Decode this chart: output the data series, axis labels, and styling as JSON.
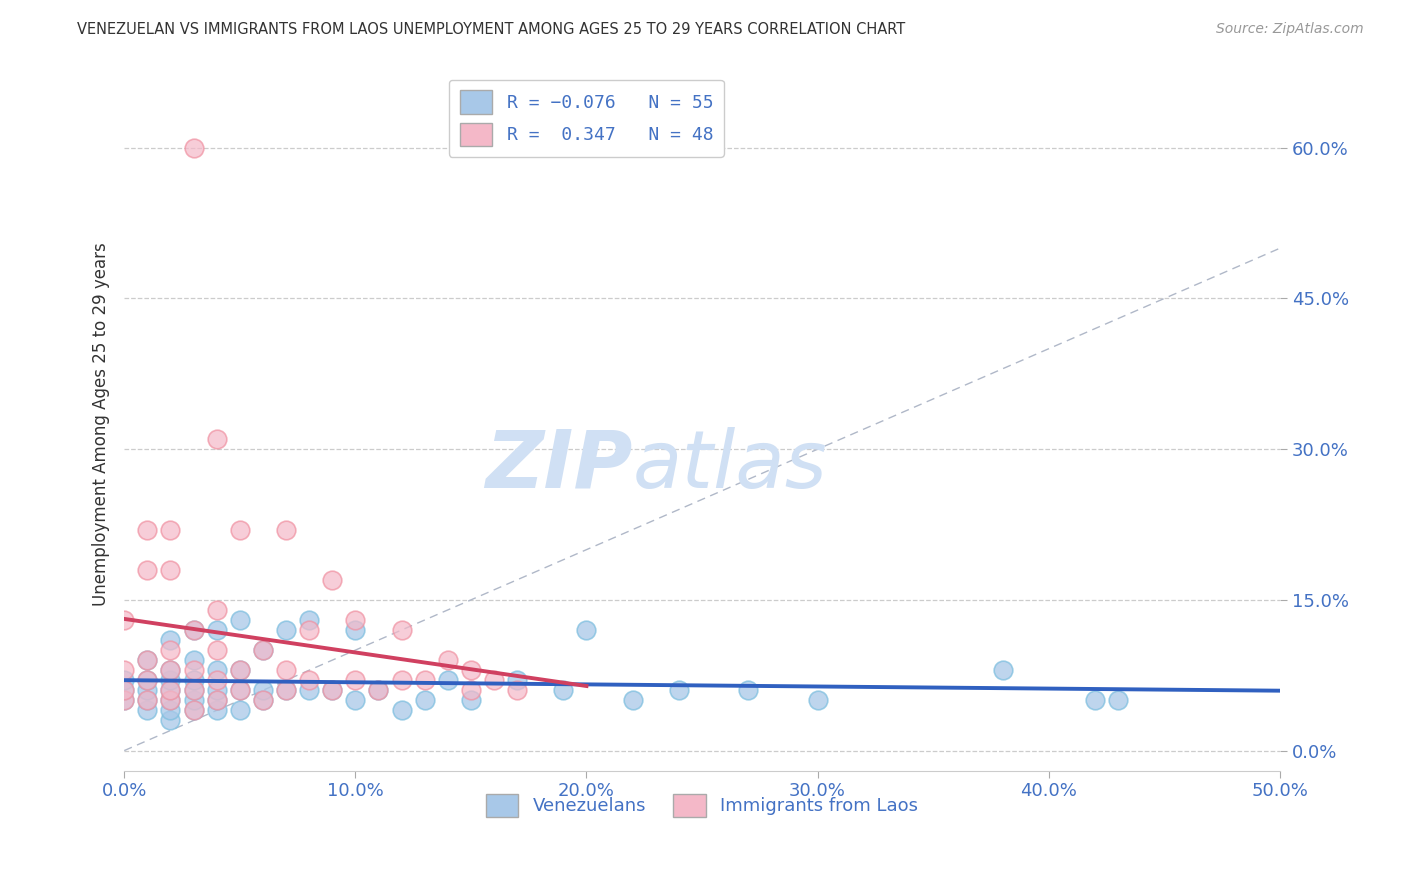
{
  "title": "VENEZUELAN VS IMMIGRANTS FROM LAOS UNEMPLOYMENT AMONG AGES 25 TO 29 YEARS CORRELATION CHART",
  "source": "Source: ZipAtlas.com",
  "ylabel": "Unemployment Among Ages 25 to 29 years",
  "xlim": [
    0.0,
    0.5
  ],
  "ylim": [
    -0.02,
    0.67
  ],
  "xticks": [
    0.0,
    0.1,
    0.2,
    0.3,
    0.4,
    0.5
  ],
  "xticklabels": [
    "0.0%",
    "10.0%",
    "20.0%",
    "30.0%",
    "40.0%",
    "50.0%"
  ],
  "yticks": [
    0.0,
    0.15,
    0.3,
    0.45,
    0.6
  ],
  "yticklabels": [
    "0.0%",
    "15.0%",
    "30.0%",
    "45.0%",
    "60.0%"
  ],
  "blue_color": "#7fbfdf",
  "pink_color": "#f090a0",
  "blue_line_color": "#3060c0",
  "pink_line_color": "#d04060",
  "blue_fill_color": "#a8c8e8",
  "pink_fill_color": "#f4b8c8",
  "watermark_zip": "ZIP",
  "watermark_atlas": "atlas",
  "watermark_color": "#d0e0f4",
  "tick_color": "#4472c4",
  "blue_scatter_x": [
    0.0,
    0.0,
    0.0,
    0.01,
    0.01,
    0.01,
    0.01,
    0.01,
    0.02,
    0.02,
    0.02,
    0.02,
    0.02,
    0.02,
    0.02,
    0.03,
    0.03,
    0.03,
    0.03,
    0.03,
    0.03,
    0.04,
    0.04,
    0.04,
    0.04,
    0.04,
    0.05,
    0.05,
    0.05,
    0.05,
    0.06,
    0.06,
    0.06,
    0.07,
    0.07,
    0.08,
    0.08,
    0.09,
    0.1,
    0.1,
    0.11,
    0.12,
    0.13,
    0.14,
    0.15,
    0.17,
    0.19,
    0.2,
    0.22,
    0.24,
    0.27,
    0.3,
    0.38,
    0.42,
    0.43
  ],
  "blue_scatter_y": [
    0.05,
    0.06,
    0.07,
    0.04,
    0.05,
    0.06,
    0.07,
    0.09,
    0.03,
    0.04,
    0.05,
    0.06,
    0.07,
    0.08,
    0.11,
    0.04,
    0.05,
    0.06,
    0.07,
    0.09,
    0.12,
    0.04,
    0.05,
    0.06,
    0.08,
    0.12,
    0.04,
    0.06,
    0.08,
    0.13,
    0.05,
    0.06,
    0.1,
    0.06,
    0.12,
    0.06,
    0.13,
    0.06,
    0.05,
    0.12,
    0.06,
    0.04,
    0.05,
    0.07,
    0.05,
    0.07,
    0.06,
    0.12,
    0.05,
    0.06,
    0.06,
    0.05,
    0.08,
    0.05,
    0.05
  ],
  "pink_scatter_x": [
    0.0,
    0.0,
    0.0,
    0.0,
    0.01,
    0.01,
    0.01,
    0.01,
    0.01,
    0.02,
    0.02,
    0.02,
    0.02,
    0.02,
    0.02,
    0.03,
    0.03,
    0.03,
    0.03,
    0.03,
    0.04,
    0.04,
    0.04,
    0.04,
    0.04,
    0.05,
    0.05,
    0.05,
    0.06,
    0.06,
    0.07,
    0.07,
    0.07,
    0.08,
    0.08,
    0.09,
    0.09,
    0.1,
    0.1,
    0.11,
    0.12,
    0.12,
    0.13,
    0.14,
    0.15,
    0.15,
    0.16,
    0.17
  ],
  "pink_scatter_y": [
    0.05,
    0.06,
    0.08,
    0.13,
    0.05,
    0.07,
    0.09,
    0.18,
    0.22,
    0.05,
    0.06,
    0.08,
    0.1,
    0.18,
    0.22,
    0.04,
    0.06,
    0.08,
    0.12,
    0.6,
    0.05,
    0.07,
    0.1,
    0.14,
    0.31,
    0.06,
    0.08,
    0.22,
    0.05,
    0.1,
    0.06,
    0.08,
    0.22,
    0.07,
    0.12,
    0.06,
    0.17,
    0.07,
    0.13,
    0.06,
    0.07,
    0.12,
    0.07,
    0.09,
    0.06,
    0.08,
    0.07,
    0.06
  ]
}
